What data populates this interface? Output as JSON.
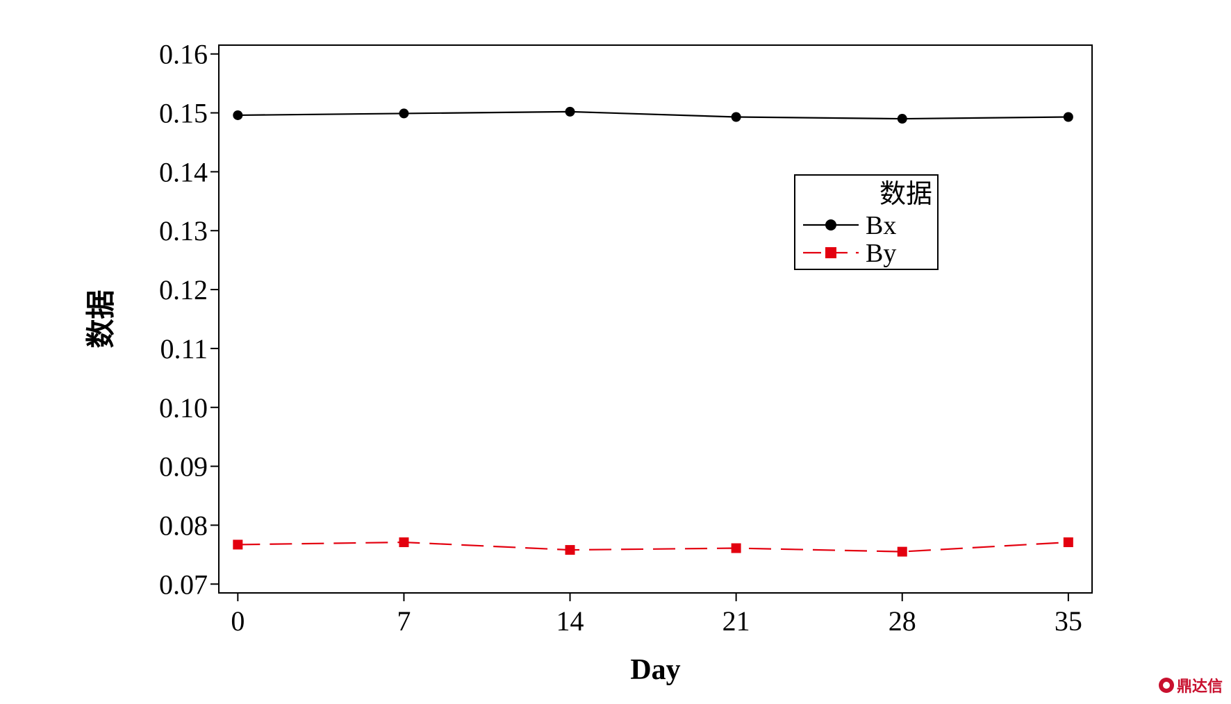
{
  "chart_data": {
    "type": "line",
    "title": "",
    "xlabel": "Day",
    "ylabel": "数据",
    "x": [
      0,
      7,
      14,
      21,
      28,
      35
    ],
    "x_ticks": [
      "0",
      "7",
      "14",
      "21",
      "28",
      "35"
    ],
    "xlim": [
      -0.8,
      36.0
    ],
    "ylim": [
      0.0685,
      0.1615
    ],
    "y_ticks": [
      "0.07",
      "0.08",
      "0.09",
      "0.10",
      "0.11",
      "0.12",
      "0.13",
      "0.14",
      "0.15",
      "0.16"
    ],
    "grid": false,
    "legend": {
      "title": "数据",
      "placement": "upper-right-inside"
    },
    "series": [
      {
        "name": "Bx",
        "values": [
          0.1496,
          0.1499,
          0.1502,
          0.1493,
          0.149,
          0.1493
        ],
        "color": "#000000",
        "marker": "circle",
        "line_style": "solid"
      },
      {
        "name": "By",
        "values": [
          0.0767,
          0.0771,
          0.0758,
          0.0761,
          0.0755,
          0.0771
        ],
        "color": "#e3000f",
        "marker": "square",
        "line_style": "dashed"
      }
    ]
  },
  "watermark": {
    "text": "鼎达信",
    "color": "#c8102e"
  }
}
